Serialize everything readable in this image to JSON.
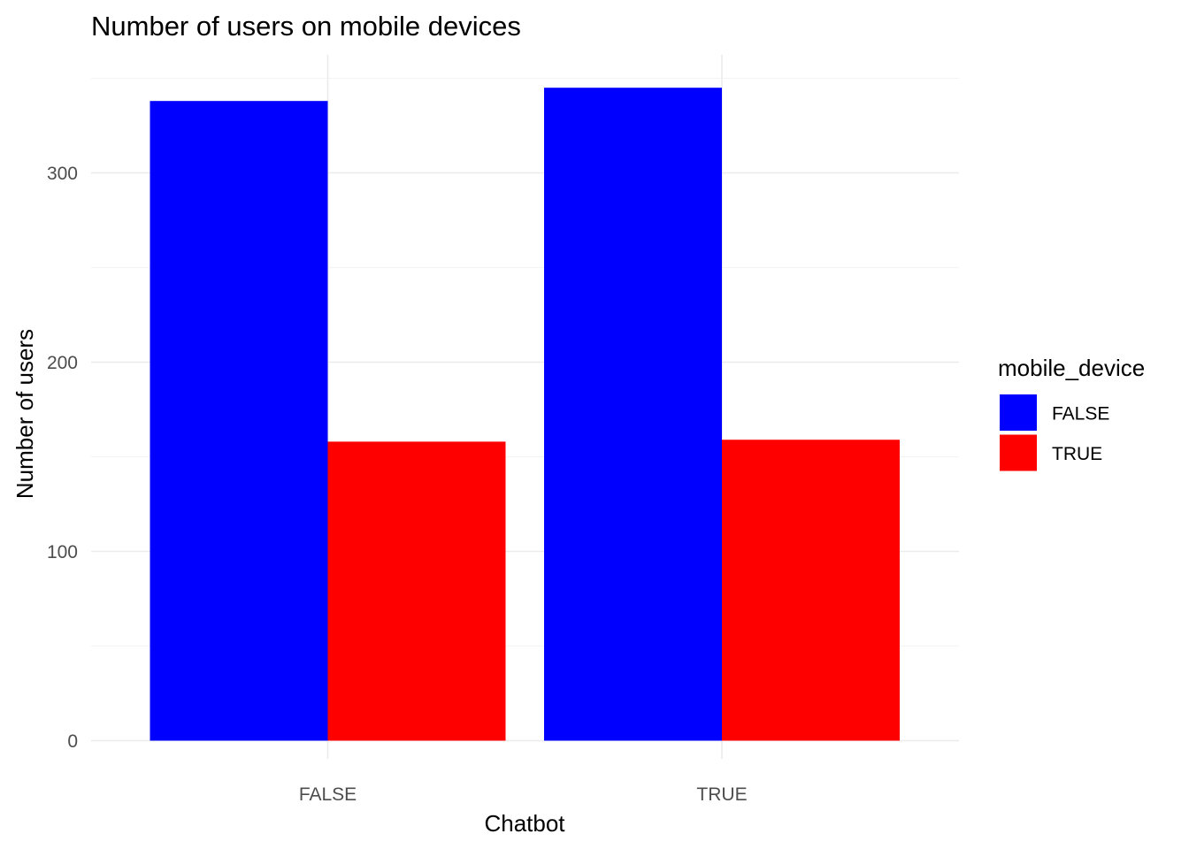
{
  "chart_data": {
    "type": "bar",
    "title": "Number of users on mobile devices",
    "xlabel": "Chatbot",
    "ylabel": "Number of users",
    "categories": [
      "FALSE",
      "TRUE"
    ],
    "ylim": [
      0,
      350
    ],
    "yticks": [
      0,
      100,
      200,
      300
    ],
    "grid": true,
    "legend_position": "right",
    "legend_title": "mobile_device",
    "series": [
      {
        "name": "FALSE",
        "color": "#0000ff",
        "values": [
          338,
          345
        ]
      },
      {
        "name": "TRUE",
        "color": "#ff0000",
        "values": [
          158,
          159
        ]
      }
    ]
  }
}
